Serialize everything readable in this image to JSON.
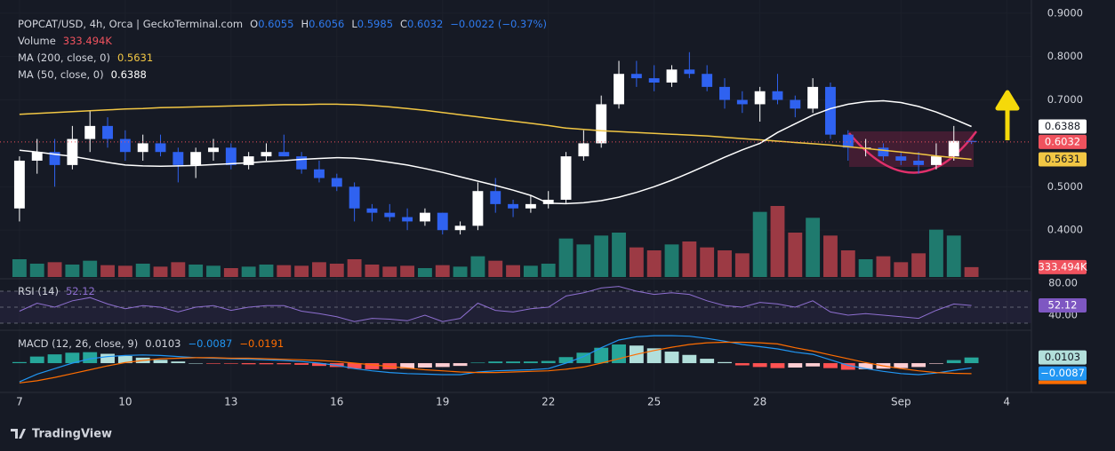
{
  "chart_data": {
    "type": "candlestick",
    "title": "POPCAT/USD, 4h, Orca | GeckoTerminal.com",
    "ohlc_labels": [
      "O",
      "H",
      "L",
      "C"
    ],
    "change_label": "−0.0022 (−0.37%)",
    "x": [
      0,
      0.5,
      1,
      1.5,
      2,
      2.5,
      3,
      3.5,
      4,
      4.5,
      5,
      5.5,
      6,
      6.5,
      7,
      7.5,
      8,
      8.5,
      9,
      9.5,
      10,
      10.5,
      11,
      11.5,
      12,
      12.5,
      13,
      13.5,
      14,
      14.5,
      15,
      15.5,
      16,
      16.5,
      17,
      17.5,
      18,
      18.5,
      19,
      19.5,
      20,
      20.5,
      21,
      21.5,
      22,
      22.5,
      23,
      23.5,
      24,
      24.5,
      25,
      25.5,
      26,
      26.5,
      27
    ],
    "xlim": [
      -0.3,
      28.7
    ],
    "xticks": [
      {
        "value": 0,
        "label": "7"
      },
      {
        "value": 3,
        "label": "10"
      },
      {
        "value": 6,
        "label": "13"
      },
      {
        "value": 9,
        "label": "16"
      },
      {
        "value": 12,
        "label": "19"
      },
      {
        "value": 15,
        "label": "22"
      },
      {
        "value": 18,
        "label": "25"
      },
      {
        "value": 21,
        "label": "28"
      },
      {
        "value": 25,
        "label": "Sep"
      },
      {
        "value": 28,
        "label": "4"
      }
    ],
    "ylim": [
      0.292,
      0.92
    ],
    "yticks": [
      {
        "value": 0.9,
        "label": "0.9000"
      },
      {
        "value": 0.8,
        "label": "0.8000"
      },
      {
        "value": 0.7,
        "label": "0.7000"
      },
      {
        "value": 0.5,
        "label": "0.5000"
      },
      {
        "value": 0.4,
        "label": "0.4000"
      }
    ],
    "grid": true,
    "candles": {
      "up_color": "#ffffff",
      "down_color": "#2f62f0",
      "open": [
        0.45,
        0.56,
        0.58,
        0.55,
        0.61,
        0.64,
        0.61,
        0.58,
        0.6,
        0.58,
        0.55,
        0.58,
        0.59,
        0.55,
        0.57,
        0.58,
        0.57,
        0.54,
        0.52,
        0.5,
        0.45,
        0.44,
        0.43,
        0.42,
        0.44,
        0.4,
        0.41,
        0.49,
        0.46,
        0.45,
        0.46,
        0.47,
        0.57,
        0.6,
        0.69,
        0.76,
        0.75,
        0.74,
        0.77,
        0.76,
        0.73,
        0.7,
        0.69,
        0.72,
        0.7,
        0.68,
        0.73,
        0.62,
        0.59,
        0.59,
        0.57,
        0.56,
        0.55,
        0.57,
        0.6055
      ],
      "high": [
        0.57,
        0.61,
        0.61,
        0.64,
        0.675,
        0.66,
        0.63,
        0.62,
        0.62,
        0.59,
        0.59,
        0.61,
        0.6,
        0.58,
        0.6,
        0.62,
        0.58,
        0.56,
        0.53,
        0.51,
        0.46,
        0.46,
        0.45,
        0.45,
        0.44,
        0.42,
        0.51,
        0.52,
        0.47,
        0.48,
        0.49,
        0.58,
        0.63,
        0.71,
        0.79,
        0.79,
        0.78,
        0.78,
        0.81,
        0.78,
        0.75,
        0.72,
        0.73,
        0.76,
        0.71,
        0.75,
        0.74,
        0.63,
        0.61,
        0.6,
        0.58,
        0.58,
        0.6,
        0.64,
        0.6056
      ],
      "low": [
        0.42,
        0.53,
        0.5,
        0.54,
        0.58,
        0.59,
        0.56,
        0.56,
        0.57,
        0.51,
        0.52,
        0.56,
        0.54,
        0.54,
        0.56,
        0.57,
        0.53,
        0.51,
        0.49,
        0.42,
        0.42,
        0.42,
        0.4,
        0.41,
        0.39,
        0.39,
        0.4,
        0.44,
        0.43,
        0.44,
        0.45,
        0.46,
        0.56,
        0.59,
        0.68,
        0.73,
        0.72,
        0.73,
        0.75,
        0.72,
        0.68,
        0.67,
        0.65,
        0.69,
        0.66,
        0.67,
        0.61,
        0.56,
        0.57,
        0.56,
        0.55,
        0.53,
        0.54,
        0.56,
        0.5985
      ],
      "close": [
        0.56,
        0.58,
        0.55,
        0.61,
        0.64,
        0.61,
        0.58,
        0.6,
        0.58,
        0.55,
        0.58,
        0.59,
        0.55,
        0.57,
        0.58,
        0.57,
        0.54,
        0.52,
        0.5,
        0.45,
        0.44,
        0.43,
        0.42,
        0.44,
        0.4,
        0.41,
        0.49,
        0.46,
        0.45,
        0.46,
        0.47,
        0.57,
        0.6,
        0.69,
        0.76,
        0.75,
        0.74,
        0.77,
        0.76,
        0.73,
        0.7,
        0.69,
        0.72,
        0.7,
        0.68,
        0.73,
        0.62,
        0.59,
        0.59,
        0.57,
        0.56,
        0.55,
        0.57,
        0.6055,
        0.6032
      ]
    },
    "volume": {
      "name": "Volume",
      "ylim": [
        0,
        3000000
      ],
      "up_color": "#1f7a6e",
      "down_color": "#9c3a44",
      "last_label": "333.494K",
      "values": [
        600000,
        450000,
        500000,
        420000,
        550000,
        400000,
        380000,
        450000,
        350000,
        500000,
        420000,
        380000,
        300000,
        350000,
        420000,
        400000,
        380000,
        500000,
        450000,
        600000,
        420000,
        350000,
        380000,
        300000,
        400000,
        350000,
        700000,
        550000,
        400000,
        380000,
        450000,
        1300000,
        1100000,
        1400000,
        1500000,
        1000000,
        900000,
        1100000,
        1200000,
        1000000,
        900000,
        800000,
        2200000,
        2400000,
        1500000,
        2000000,
        1400000,
        900000,
        600000,
        700000,
        500000,
        800000,
        1600000,
        1400000,
        333494
      ]
    },
    "overlays": [
      {
        "name": "MA (200, close, 0)",
        "color": "#f2c744",
        "values": [
          0.667,
          0.669,
          0.671,
          0.673,
          0.675,
          0.677,
          0.679,
          0.68,
          0.682,
          0.683,
          0.684,
          0.685,
          0.686,
          0.687,
          0.688,
          0.689,
          0.689,
          0.69,
          0.69,
          0.689,
          0.687,
          0.684,
          0.68,
          0.676,
          0.671,
          0.666,
          0.661,
          0.656,
          0.651,
          0.646,
          0.641,
          0.635,
          0.632,
          0.629,
          0.627,
          0.625,
          0.623,
          0.621,
          0.619,
          0.617,
          0.614,
          0.611,
          0.608,
          0.605,
          0.602,
          0.599,
          0.596,
          0.592,
          0.588,
          0.584,
          0.58,
          0.576,
          0.571,
          0.567,
          0.5631
        ]
      },
      {
        "name": "MA (50, close, 0)",
        "color": "#ffffff",
        "values": [
          0.584,
          0.58,
          0.575,
          0.57,
          0.563,
          0.556,
          0.55,
          0.548,
          0.547,
          0.548,
          0.549,
          0.551,
          0.553,
          0.555,
          0.558,
          0.56,
          0.563,
          0.565,
          0.567,
          0.566,
          0.562,
          0.556,
          0.55,
          0.542,
          0.533,
          0.523,
          0.513,
          0.503,
          0.492,
          0.48,
          0.462,
          0.461,
          0.463,
          0.468,
          0.476,
          0.487,
          0.5,
          0.515,
          0.532,
          0.55,
          0.568,
          0.585,
          0.6,
          0.625,
          0.645,
          0.665,
          0.68,
          0.69,
          0.696,
          0.698,
          0.694,
          0.685,
          0.672,
          0.656,
          0.6388
        ]
      }
    ],
    "rsi": {
      "name": "RSI (14)",
      "color": "#8e6fd0",
      "ylim": [
        23.3,
        83.3
      ],
      "bands": [
        70,
        50,
        30
      ],
      "yticks": [
        {
          "value": 80,
          "label": "80.00"
        },
        {
          "value": 40,
          "label": "40.00"
        }
      ],
      "values": [
        45,
        55,
        50,
        58,
        62,
        54,
        48,
        52,
        50,
        44,
        50,
        52,
        46,
        50,
        52,
        52,
        45,
        42,
        38,
        32,
        36,
        35,
        33,
        40,
        32,
        36,
        55,
        46,
        44,
        48,
        50,
        64,
        68,
        74,
        76,
        70,
        66,
        68,
        66,
        58,
        52,
        50,
        56,
        54,
        50,
        58,
        44,
        40,
        42,
        40,
        38,
        36,
        46,
        54,
        52.12
      ]
    },
    "macd": {
      "name": "MACD (12, 26, close, 9)",
      "ylim": [
        -0.05,
        0.055
      ],
      "histogram": {
        "colors": [
          "#26a69a",
          "#b2dfdb",
          "#ff5252",
          "#ffcdd2"
        ],
        "values": [
          0.002,
          0.012,
          0.016,
          0.019,
          0.02,
          0.017,
          0.013,
          0.01,
          0.006,
          0.003,
          0,
          -0.001,
          -0.001,
          -0.002,
          -0.002,
          -0.002,
          -0.003,
          -0.005,
          -0.007,
          -0.01,
          -0.011,
          -0.011,
          -0.01,
          -0.008,
          -0.007,
          -0.005,
          0.001,
          0.003,
          0.003,
          0.003,
          0.004,
          0.011,
          0.019,
          0.028,
          0.034,
          0.032,
          0.027,
          0.021,
          0.015,
          0.008,
          0.002,
          -0.004,
          -0.007,
          -0.009,
          -0.008,
          -0.006,
          -0.009,
          -0.012,
          -0.011,
          -0.01,
          -0.009,
          -0.007,
          -0.001,
          0.0055,
          0.0103
        ]
      },
      "macd": {
        "color": "#2196f3",
        "last_label": "−0.0087",
        "values": [
          -0.034,
          -0.02,
          -0.01,
          0.0,
          0.008,
          0.012,
          0.014,
          0.015,
          0.014,
          0.012,
          0.01,
          0.009,
          0.008,
          0.007,
          0.006,
          0.005,
          0.003,
          0.0,
          -0.004,
          -0.01,
          -0.014,
          -0.017,
          -0.019,
          -0.02,
          -0.021,
          -0.021,
          -0.016,
          -0.014,
          -0.013,
          -0.012,
          -0.01,
          0.0,
          0.012,
          0.028,
          0.042,
          0.048,
          0.05,
          0.05,
          0.049,
          0.045,
          0.04,
          0.034,
          0.03,
          0.026,
          0.02,
          0.016,
          0.006,
          -0.004,
          -0.01,
          -0.015,
          -0.019,
          -0.021,
          -0.018,
          -0.013,
          -0.0087
        ]
      },
      "signal": {
        "color": "#ff6d00",
        "last_label": "−0.0191",
        "values": [
          -0.036,
          -0.032,
          -0.026,
          -0.019,
          -0.012,
          -0.005,
          0.001,
          0.005,
          0.008,
          0.009,
          0.01,
          0.01,
          0.009,
          0.009,
          0.008,
          0.007,
          0.006,
          0.005,
          0.003,
          0.0,
          -0.003,
          -0.006,
          -0.009,
          -0.012,
          -0.014,
          -0.016,
          -0.017,
          -0.017,
          -0.016,
          -0.015,
          -0.014,
          -0.011,
          -0.007,
          0.0,
          0.008,
          0.016,
          0.023,
          0.029,
          0.034,
          0.037,
          0.038,
          0.038,
          0.037,
          0.035,
          0.028,
          0.022,
          0.015,
          0.008,
          0.001,
          -0.005,
          -0.01,
          -0.014,
          -0.017,
          -0.0185,
          -0.0191
        ]
      }
    },
    "brand": "TradingView"
  }
}
